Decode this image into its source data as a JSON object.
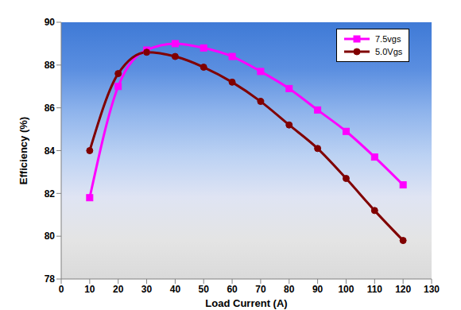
{
  "chart_data": {
    "type": "line",
    "x_label": "Load Current (A)",
    "y_label": "Efficiency (%)",
    "x": [
      10,
      20,
      30,
      40,
      50,
      60,
      70,
      80,
      90,
      100,
      110,
      120
    ],
    "series": [
      {
        "name": "7.5vgs",
        "color": "#ff00ff",
        "marker": "square",
        "values": [
          81.8,
          87.0,
          88.7,
          89.0,
          88.8,
          88.4,
          87.7,
          86.9,
          85.9,
          84.9,
          83.7,
          82.4
        ]
      },
      {
        "name": "5.0Vgs",
        "color": "#800000",
        "marker": "circle",
        "values": [
          84.0,
          87.6,
          88.6,
          88.4,
          87.9,
          87.2,
          86.3,
          85.2,
          84.1,
          82.7,
          81.2,
          79.8
        ]
      }
    ],
    "xlim": [
      0,
      130
    ],
    "xticks": [
      0,
      10,
      20,
      30,
      40,
      50,
      60,
      70,
      80,
      90,
      100,
      110,
      120,
      130
    ],
    "ylim": [
      78,
      90
    ],
    "yticks": [
      78,
      80,
      82,
      84,
      86,
      88,
      90
    ],
    "grid": false,
    "legend": "upper right"
  }
}
